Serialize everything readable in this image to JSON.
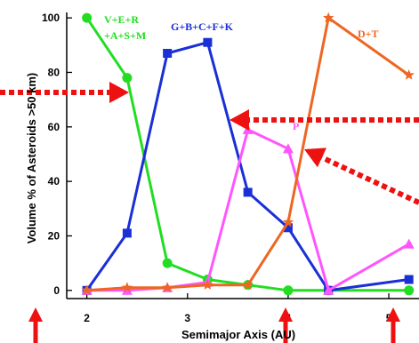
{
  "chart_data": {
    "type": "line",
    "xlabel": "Semimajor Axis (AU)",
    "ylabel": "Volume % of Asteroids >50 km)",
    "xlim": [
      1.8,
      5.3
    ],
    "ylim": [
      -3,
      102
    ],
    "x_ticks": [
      2,
      3,
      4,
      5
    ],
    "y_ticks": [
      0,
      20,
      40,
      60,
      80,
      100
    ],
    "grid": false,
    "top_residue": "",
    "series": [
      {
        "name_lines": [
          "V+E+R",
          "+A+S+M"
        ],
        "color": "#22dd22",
        "marker": "circle",
        "x": [
          2.0,
          2.4,
          2.8,
          3.2,
          3.6,
          4.0,
          4.4,
          5.2
        ],
        "y": [
          100,
          78,
          10,
          4,
          2,
          0,
          0,
          0
        ]
      },
      {
        "name_lines": [
          "G+B+C+F+K"
        ],
        "color": "#1a2fd6",
        "marker": "square",
        "x": [
          2.0,
          2.4,
          2.8,
          3.2,
          3.6,
          4.0,
          4.4,
          5.2
        ],
        "y": [
          0,
          21,
          87,
          91,
          36,
          23,
          0,
          4
        ]
      },
      {
        "name_lines": [
          "P"
        ],
        "color": "#ff55ff",
        "marker": "triangle",
        "x": [
          2.0,
          2.4,
          2.8,
          3.2,
          3.6,
          4.0,
          4.4,
          5.2
        ],
        "y": [
          0,
          0,
          1,
          3,
          59,
          52,
          0,
          17
        ]
      },
      {
        "name_lines": [
          "D+T"
        ],
        "color": "#ee6622",
        "marker": "star",
        "x": [
          2.0,
          2.4,
          2.8,
          3.2,
          3.6,
          4.0,
          4.4,
          5.2
        ],
        "y": [
          0,
          1,
          1,
          2,
          2,
          25,
          100,
          79
        ]
      }
    ],
    "annotation_arrows": {
      "color": "#ee1111",
      "count": 7,
      "style": "dashed arrows pointing at features of the curves and the x axis"
    }
  }
}
